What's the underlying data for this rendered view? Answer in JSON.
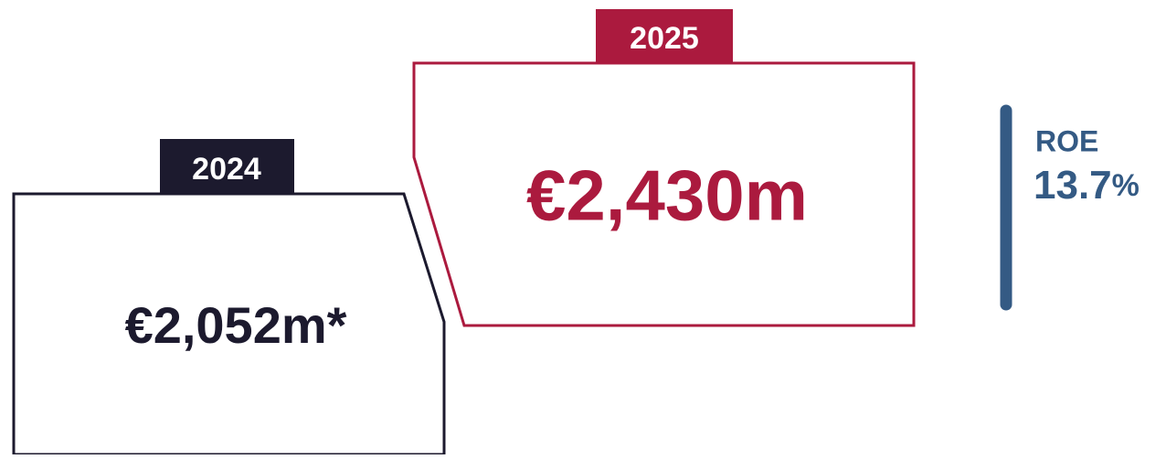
{
  "cards": [
    {
      "year": "2024",
      "value": "€2,052m*"
    },
    {
      "year": "2025",
      "value": "€2,430m"
    }
  ],
  "roe": {
    "label": "ROE",
    "value": "13.7",
    "unit": "%"
  }
}
